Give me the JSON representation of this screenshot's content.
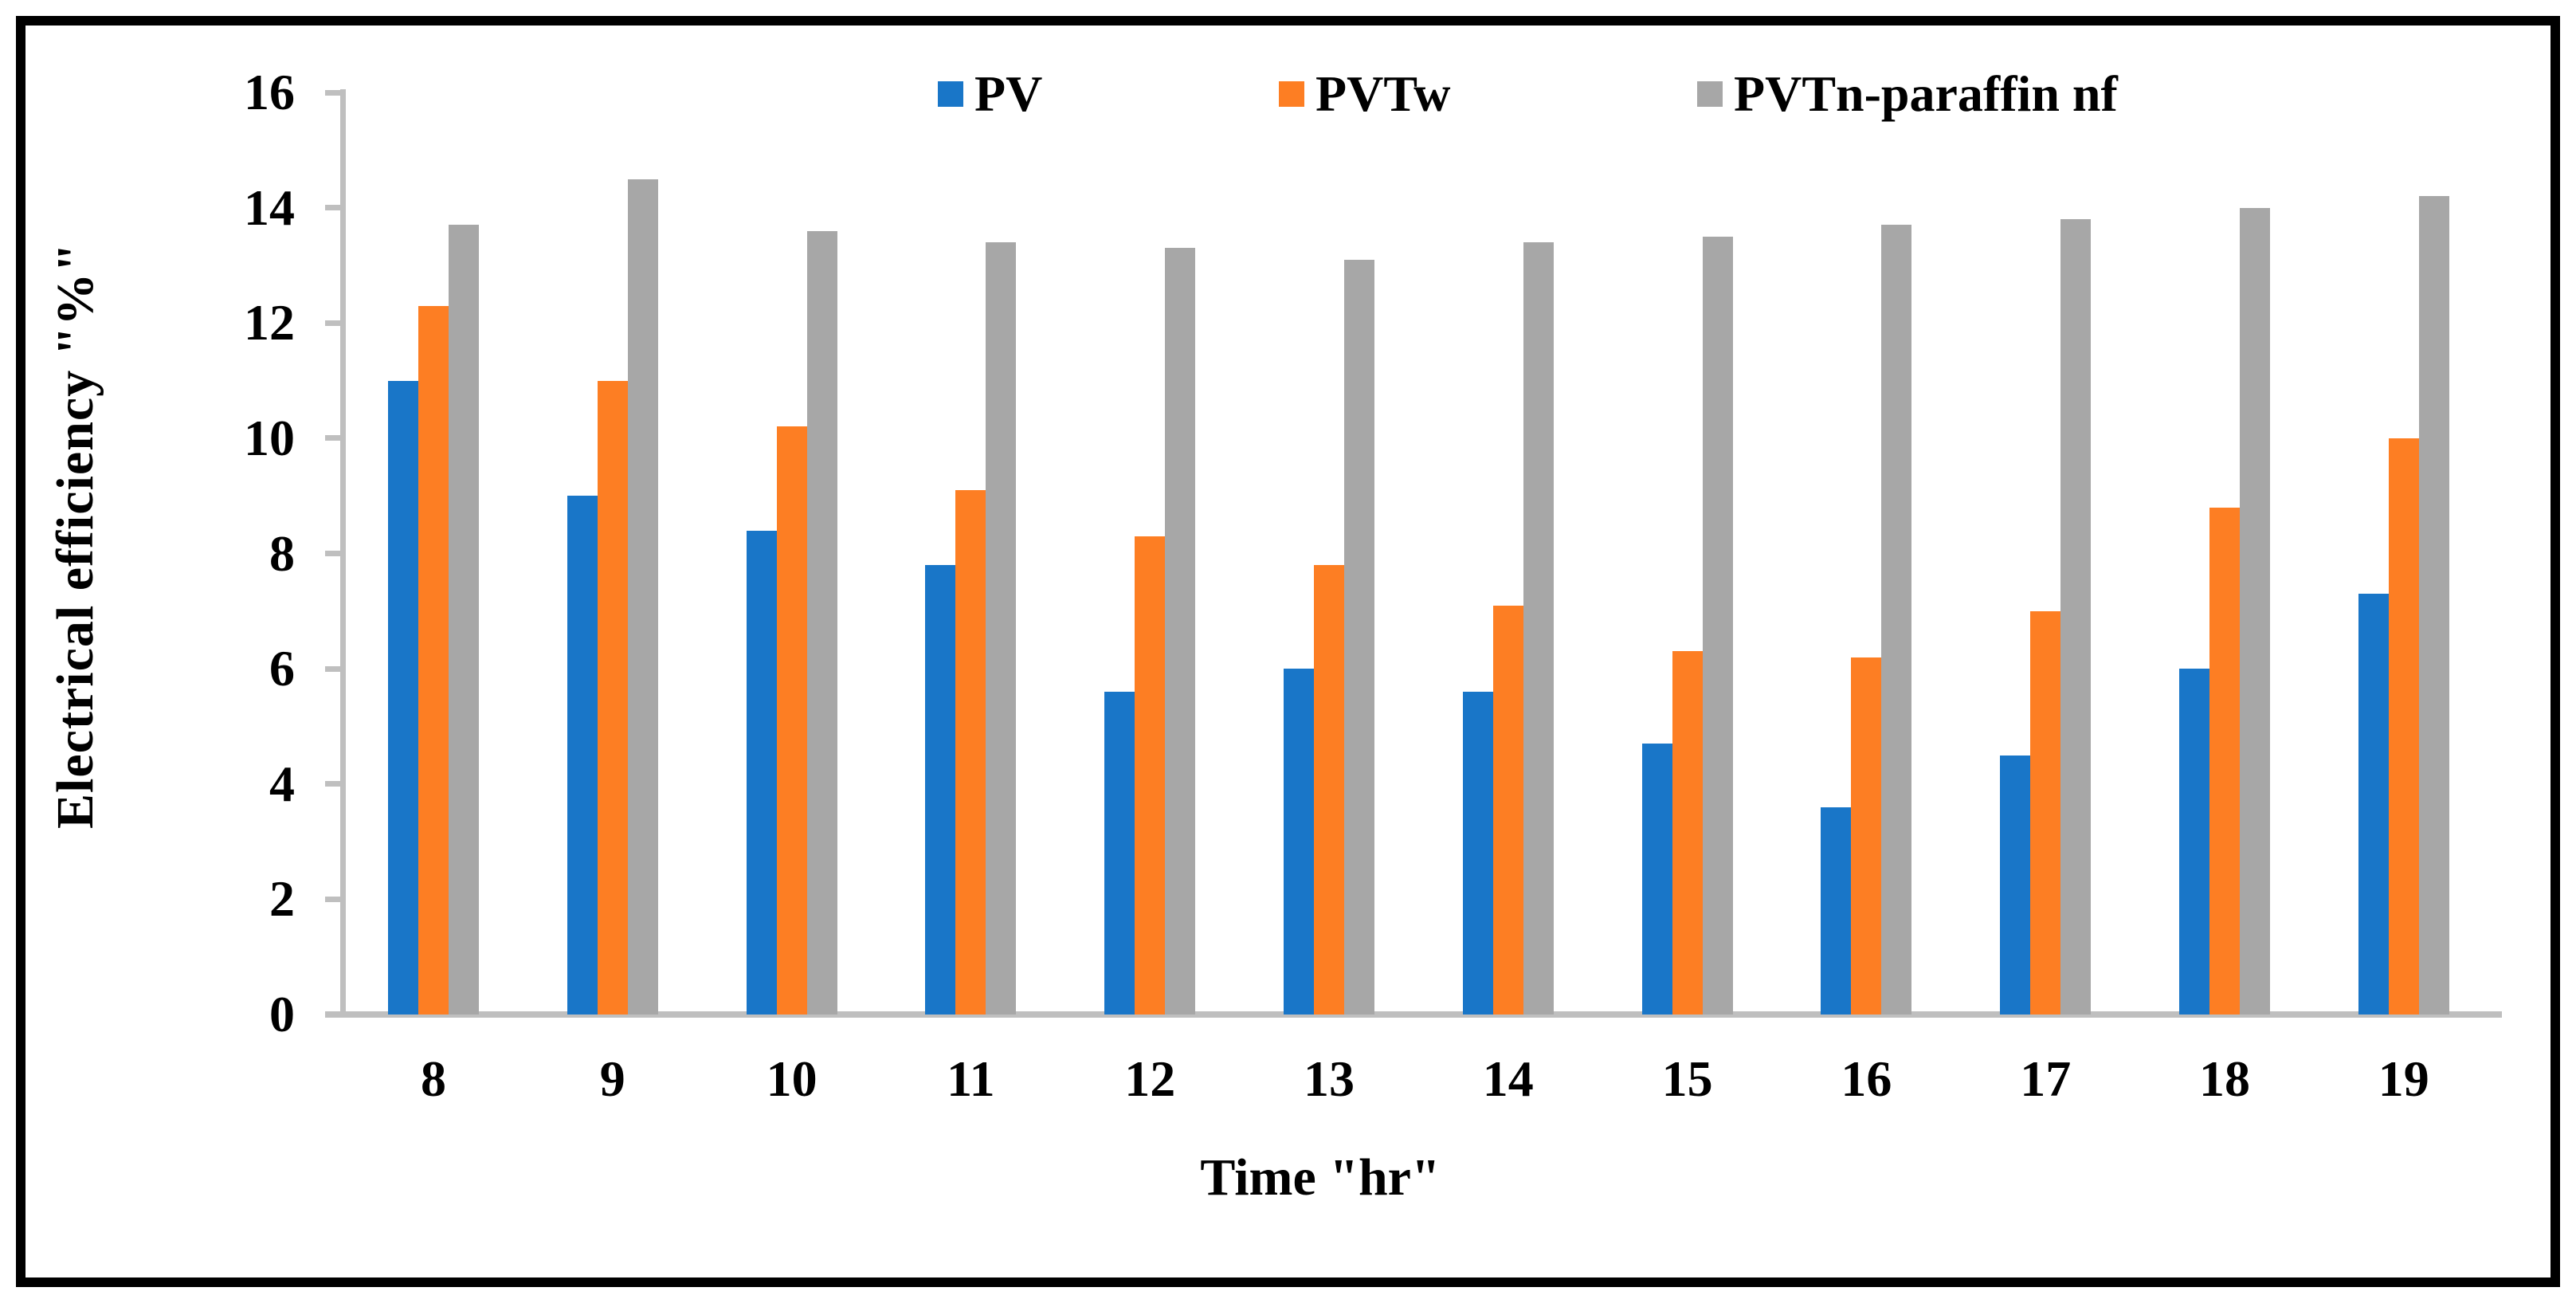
{
  "chart_data": {
    "type": "bar",
    "title": "",
    "categories": [
      "8",
      "9",
      "10",
      "11",
      "12",
      "13",
      "14",
      "15",
      "16",
      "17",
      "18",
      "19"
    ],
    "series": [
      {
        "name": "PV",
        "color": "#1976C8",
        "values": [
          11.0,
          9.0,
          8.4,
          7.8,
          5.6,
          6.0,
          5.6,
          4.7,
          3.6,
          4.5,
          6.0,
          7.3
        ]
      },
      {
        "name": "PVTw",
        "color": "#FD7E23",
        "values": [
          12.3,
          11.0,
          10.2,
          9.1,
          8.3,
          7.8,
          7.1,
          6.3,
          6.2,
          7.0,
          8.8,
          10.0
        ]
      },
      {
        "name": "PVTn-paraffin nf",
        "color": "#A7A7A7",
        "values": [
          13.7,
          14.5,
          13.6,
          13.4,
          13.3,
          13.1,
          13.4,
          13.5,
          13.7,
          13.8,
          14.0,
          14.2
        ]
      }
    ],
    "xlabel": "Time \"hr\"",
    "ylabel": "Electrical efficiency \"%\"",
    "ylim": [
      0,
      16
    ],
    "ytick_step": 2,
    "grid": false,
    "legend_position": "top",
    "axis_color": "#BFBFBF"
  }
}
